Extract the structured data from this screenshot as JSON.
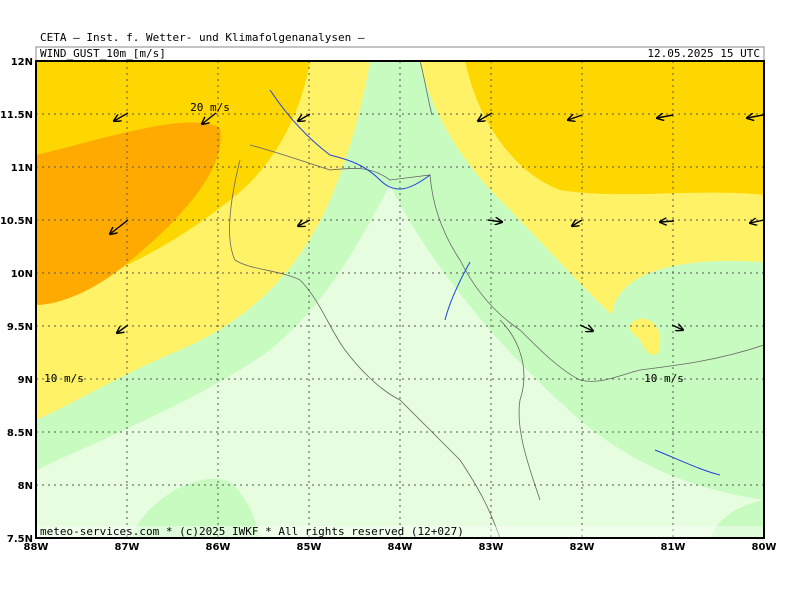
{
  "header": {
    "title": "CETA — Inst. f. Wetter- und Klimafolgenanalysen —",
    "parameter": "WIND_GUST_10m_[m/s]",
    "valid_time": "12.05.2025 15 UTC"
  },
  "map": {
    "lon_ticks": [
      {
        "value": -88,
        "label": "88W"
      },
      {
        "value": -87,
        "label": "87W"
      },
      {
        "value": -86,
        "label": "86W"
      },
      {
        "value": -85,
        "label": "85W"
      },
      {
        "value": -84,
        "label": "84W"
      },
      {
        "value": -83,
        "label": "83W"
      },
      {
        "value": -82,
        "label": "82W"
      },
      {
        "value": -81,
        "label": "81W"
      },
      {
        "value": -80,
        "label": "80W"
      }
    ],
    "lat_ticks": [
      {
        "value": 12,
        "label": "12N"
      },
      {
        "value": 11.5,
        "label": "11.5N"
      },
      {
        "value": 11,
        "label": "11N"
      },
      {
        "value": 10.5,
        "label": "10.5N"
      },
      {
        "value": 10,
        "label": "10N"
      },
      {
        "value": 9.5,
        "label": "9.5N"
      },
      {
        "value": 9,
        "label": "9N"
      },
      {
        "value": 8.5,
        "label": "8.5N"
      },
      {
        "value": 8,
        "label": "8N"
      },
      {
        "value": 7.5,
        "label": "7.5N"
      }
    ],
    "contour_labels": [
      "20 m/s",
      "10 m/s",
      "10 m/s"
    ],
    "footer": "meteo-services.com * (c)2025 IWKF * All rights reserved (12+027)"
  }
}
